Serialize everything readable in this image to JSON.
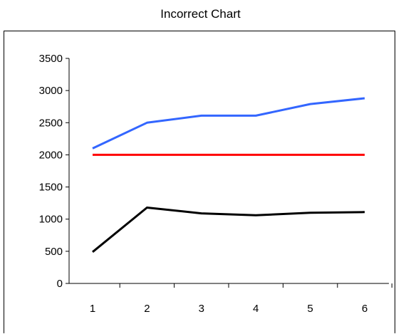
{
  "chart_data": {
    "type": "line",
    "title": "Incorrect Chart",
    "xlabel": "",
    "ylabel": "",
    "x": [
      1,
      2,
      3,
      4,
      5,
      6
    ],
    "ylim": [
      0,
      3500
    ],
    "yticks": [
      0,
      500,
      1000,
      1500,
      2000,
      2500,
      3000,
      3500
    ],
    "grid": false,
    "legend": "none",
    "series": [
      {
        "color": "#3366ff",
        "values": [
          2100,
          2500,
          2610,
          2610,
          2790,
          2880
        ]
      },
      {
        "color": "#ff0000",
        "values": [
          2000,
          2000,
          2000,
          2000,
          2000,
          2000
        ]
      },
      {
        "color": "#000000",
        "values": [
          490,
          1180,
          1090,
          1060,
          1100,
          1110
        ]
      }
    ]
  }
}
